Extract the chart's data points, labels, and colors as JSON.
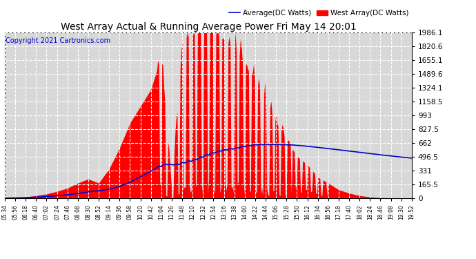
{
  "title": "West Array Actual & Running Average Power Fri May 14 20:01",
  "copyright": "Copyright 2021 Cartronics.com",
  "legend_avg": "Average(DC Watts)",
  "legend_west": "West Array(DC Watts)",
  "ymin": 0.0,
  "ymax": 1986.1,
  "yticks": [
    0.0,
    165.5,
    331.0,
    496.5,
    662.0,
    827.5,
    993.0,
    1158.5,
    1324.1,
    1489.6,
    1655.1,
    1820.6,
    1986.1
  ],
  "bg_color": "#ffffff",
  "plot_bg_color": "#d8d8d8",
  "grid_color": "#ffffff",
  "fill_color": "#ff0000",
  "avg_line_color": "#0000cc",
  "title_color": "#000000",
  "copyright_color": "#0000cc",
  "legend_avg_color": "#0000cc",
  "legend_west_color": "#ff0000",
  "xtick_labels": [
    "05:34",
    "05:56",
    "06:18",
    "06:40",
    "07:02",
    "07:24",
    "07:46",
    "08:08",
    "08:30",
    "08:52",
    "09:14",
    "09:36",
    "09:58",
    "10:20",
    "10:42",
    "11:04",
    "11:26",
    "11:48",
    "12:10",
    "12:32",
    "12:54",
    "13:16",
    "13:38",
    "14:00",
    "14:22",
    "14:44",
    "15:06",
    "15:28",
    "15:50",
    "16:12",
    "16:34",
    "16:56",
    "17:18",
    "17:40",
    "18:02",
    "18:24",
    "18:46",
    "19:08",
    "19:30",
    "19:52"
  ]
}
